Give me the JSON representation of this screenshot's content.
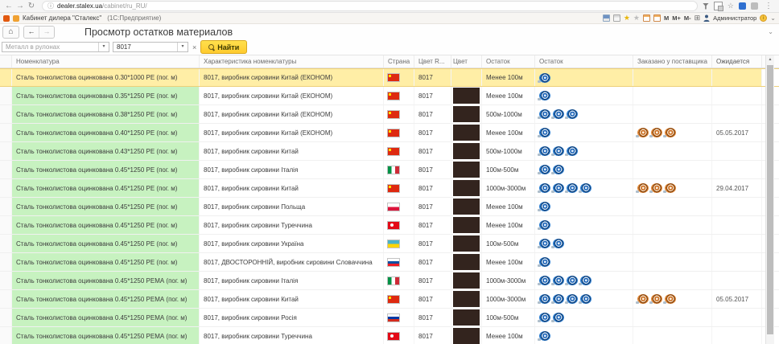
{
  "browser": {
    "url_domain": "dealer.stalex.ua",
    "url_path": "/cabinet/ru_RU/"
  },
  "app_bar": {
    "title": "Кабинет дилера \"Сталекс\"",
    "subtitle": "(1С:Предприятие)",
    "memory_buttons": [
      "М",
      "М+",
      "М-"
    ],
    "user_label": "Администратор"
  },
  "nav": {
    "page_title": "Просмотр остатков материалов"
  },
  "filters": {
    "material_placeholder": "Металл в рулонах",
    "color_value": "8017",
    "find_label": "Найти"
  },
  "icons": {
    "back": "←",
    "forward": "→",
    "reload": "↻",
    "info": "ⓘ",
    "kebab": "⋮",
    "star": "☆",
    "star_filled": "★",
    "home": "⌂",
    "dropdown": "▾",
    "clear": "×",
    "chevron_down": "⌄",
    "scroll_up": "▲",
    "window": "⊞",
    "info_small": "i"
  },
  "table": {
    "columns": [
      "",
      "Номенклатура",
      "Характеристика номенклатуры",
      "Страна",
      "Цвет R...",
      "Цвет",
      "Остаток",
      "Остаток",
      "Заказано у поставщика",
      "Ожидается"
    ],
    "rows": [
      {
        "name": "Сталь тонколистова оцинкована 0.30*1000 РЕ (пог. м)",
        "char": "8017, виробник сировини Китай (ЕКОНОМ)",
        "country": "china",
        "ral": "8017",
        "swatch": false,
        "stock": "Менее 100м",
        "coils": 1,
        "ordered": 0,
        "expected": "",
        "selected": true
      },
      {
        "name": "Сталь тонколистова оцинкована 0.35*1250 РЕ (пог. м)",
        "char": "8017, виробник сировини Китай (ЕКОНОМ)",
        "country": "china",
        "ral": "8017",
        "swatch": true,
        "stock": "Менее 100м",
        "coils": 1,
        "ordered": 0,
        "expected": "",
        "selected": false
      },
      {
        "name": "Сталь тонколистова оцинкована 0.38*1250 РЕ (пог. м)",
        "char": "8017, виробник сировини Китай (ЕКОНОМ)",
        "country": "china",
        "ral": "8017",
        "swatch": true,
        "stock": "500м-1000м",
        "coils": 3,
        "ordered": 0,
        "expected": "",
        "selected": false
      },
      {
        "name": "Сталь тонколистова оцинкована 0.40*1250 РЕ (пог. м)",
        "char": "8017, виробник сировини Китай (ЕКОНОМ)",
        "country": "china",
        "ral": "8017",
        "swatch": true,
        "stock": "Менее 100м",
        "coils": 1,
        "ordered": 3,
        "expected": "05.05.2017",
        "selected": false
      },
      {
        "name": "Сталь тонколистова оцинкована 0.43*1250 РЕ (пог. м)",
        "char": "8017, виробник сировини Китай",
        "country": "china",
        "ral": "8017",
        "swatch": true,
        "stock": "500м-1000м",
        "coils": 3,
        "ordered": 0,
        "expected": "",
        "selected": false
      },
      {
        "name": "Сталь тонколистова оцинкована 0.45*1250 РЕ (пог. м)",
        "char": "8017, виробник сировини Італія",
        "country": "italy",
        "ral": "8017",
        "swatch": true,
        "stock": "100м-500м",
        "coils": 2,
        "ordered": 0,
        "expected": "",
        "selected": false
      },
      {
        "name": "Сталь тонколистова оцинкована 0.45*1250 РЕ (пог. м)",
        "char": "8017, виробник сировини Китай",
        "country": "china",
        "ral": "8017",
        "swatch": true,
        "stock": "1000м-3000м",
        "coils": 4,
        "ordered": 3,
        "expected": "29.04.2017",
        "selected": false
      },
      {
        "name": "Сталь тонколистова оцинкована 0.45*1250 РЕ (пог. м)",
        "char": "8017, виробник сировини Польща",
        "country": "poland",
        "ral": "8017",
        "swatch": true,
        "stock": "Менее 100м",
        "coils": 1,
        "ordered": 0,
        "expected": "",
        "selected": false
      },
      {
        "name": "Сталь тонколистова оцинкована 0.45*1250 РЕ (пог. м)",
        "char": "8017, виробник сировини Туреччина",
        "country": "turkey",
        "ral": "8017",
        "swatch": true,
        "stock": "Менее 100м",
        "coils": 1,
        "ordered": 0,
        "expected": "",
        "selected": false
      },
      {
        "name": "Сталь тонколистова оцинкована 0.45*1250 РЕ (пог. м)",
        "char": "8017, виробник сировини Україна",
        "country": "ukraine",
        "ral": "8017",
        "swatch": true,
        "stock": "100м-500м",
        "coils": 2,
        "ordered": 0,
        "expected": "",
        "selected": false
      },
      {
        "name": "Сталь тонколистова оцинкована 0.45*1250 РЕ (пог. м)",
        "char": "8017, ДВОСТОРОННІЙ, виробник сировини Словаччина",
        "country": "slovakia",
        "ral": "8017",
        "swatch": true,
        "stock": "Менее 100м",
        "coils": 1,
        "ordered": 0,
        "expected": "",
        "selected": false
      },
      {
        "name": "Сталь тонколистова оцинкована 0.45*1250 РЕМА (пог. м)",
        "char": "8017, виробник сировини Італія",
        "country": "italy",
        "ral": "8017",
        "swatch": true,
        "stock": "1000м-3000м",
        "coils": 4,
        "ordered": 0,
        "expected": "",
        "selected": false
      },
      {
        "name": "Сталь тонколистова оцинкована 0.45*1250 РЕМА (пог. м)",
        "char": "8017, виробник сировини Китай",
        "country": "china",
        "ral": "8017",
        "swatch": true,
        "stock": "1000м-3000м",
        "coils": 4,
        "ordered": 3,
        "expected": "05.05.2017",
        "selected": false
      },
      {
        "name": "Сталь тонколистова оцинкована 0.45*1250 РЕМА (пог. м)",
        "char": "8017, виробник сировини Росія",
        "country": "russia",
        "ral": "8017",
        "swatch": true,
        "stock": "100м-500м",
        "coils": 2,
        "ordered": 0,
        "expected": "",
        "selected": false
      },
      {
        "name": "Сталь тонколистова оцинкована 0.45*1250 РЕМА (пог. м)",
        "char": "8017, виробник сировини Туреччина",
        "country": "turkey",
        "ral": "8017",
        "swatch": true,
        "stock": "Менее 100м",
        "coils": 1,
        "ordered": 0,
        "expected": "",
        "selected": false
      }
    ]
  }
}
